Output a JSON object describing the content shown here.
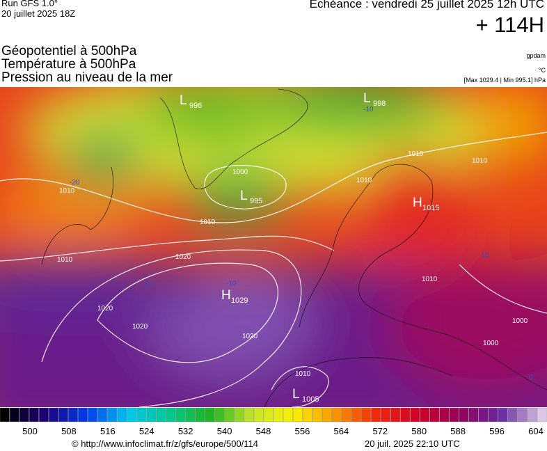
{
  "header": {
    "run": "Run GFS 1.0°",
    "run_date": "20 juillet 2025 18Z",
    "echeance": "Echéance : vendredi 25 juillet 2025 12h UTC",
    "lead": "+ 114H"
  },
  "titles": [
    "Géopotentiel à 500hPa",
    "Température à 500hPa",
    "Pression au niveau de la mer"
  ],
  "units": {
    "geopotential": "gpdam",
    "temperature": "°C",
    "pressure": "[Max 1029.4 | Min 995.1] hPa"
  },
  "centers": [
    {
      "kind": "L",
      "value": "996"
    },
    {
      "kind": "L",
      "value": "998"
    },
    {
      "kind": "L",
      "value": "995"
    },
    {
      "kind": "H",
      "value": "1015"
    },
    {
      "kind": "H",
      "value": "1029"
    },
    {
      "kind": "L",
      "value": "1005"
    }
  ],
  "isobar_labels": [
    "1010",
    "1010",
    "1010",
    "1020",
    "1020",
    "1020",
    "1020",
    "1000",
    "1010",
    "1010",
    "1010",
    "1010",
    "1000",
    "1000",
    "1010"
  ],
  "temperature_labels": [
    "-20",
    "-10",
    "-10",
    "-10",
    "-10",
    "0"
  ],
  "colorbar": {
    "ticks": [
      500,
      508,
      516,
      524,
      532,
      540,
      548,
      556,
      564,
      572,
      580,
      588,
      596,
      604
    ]
  },
  "footer": {
    "url": "© http://www.infoclimat.fr/z/gfs/europe/500/114",
    "timestamp": "20 juil. 2025 22:10 UTC"
  }
}
